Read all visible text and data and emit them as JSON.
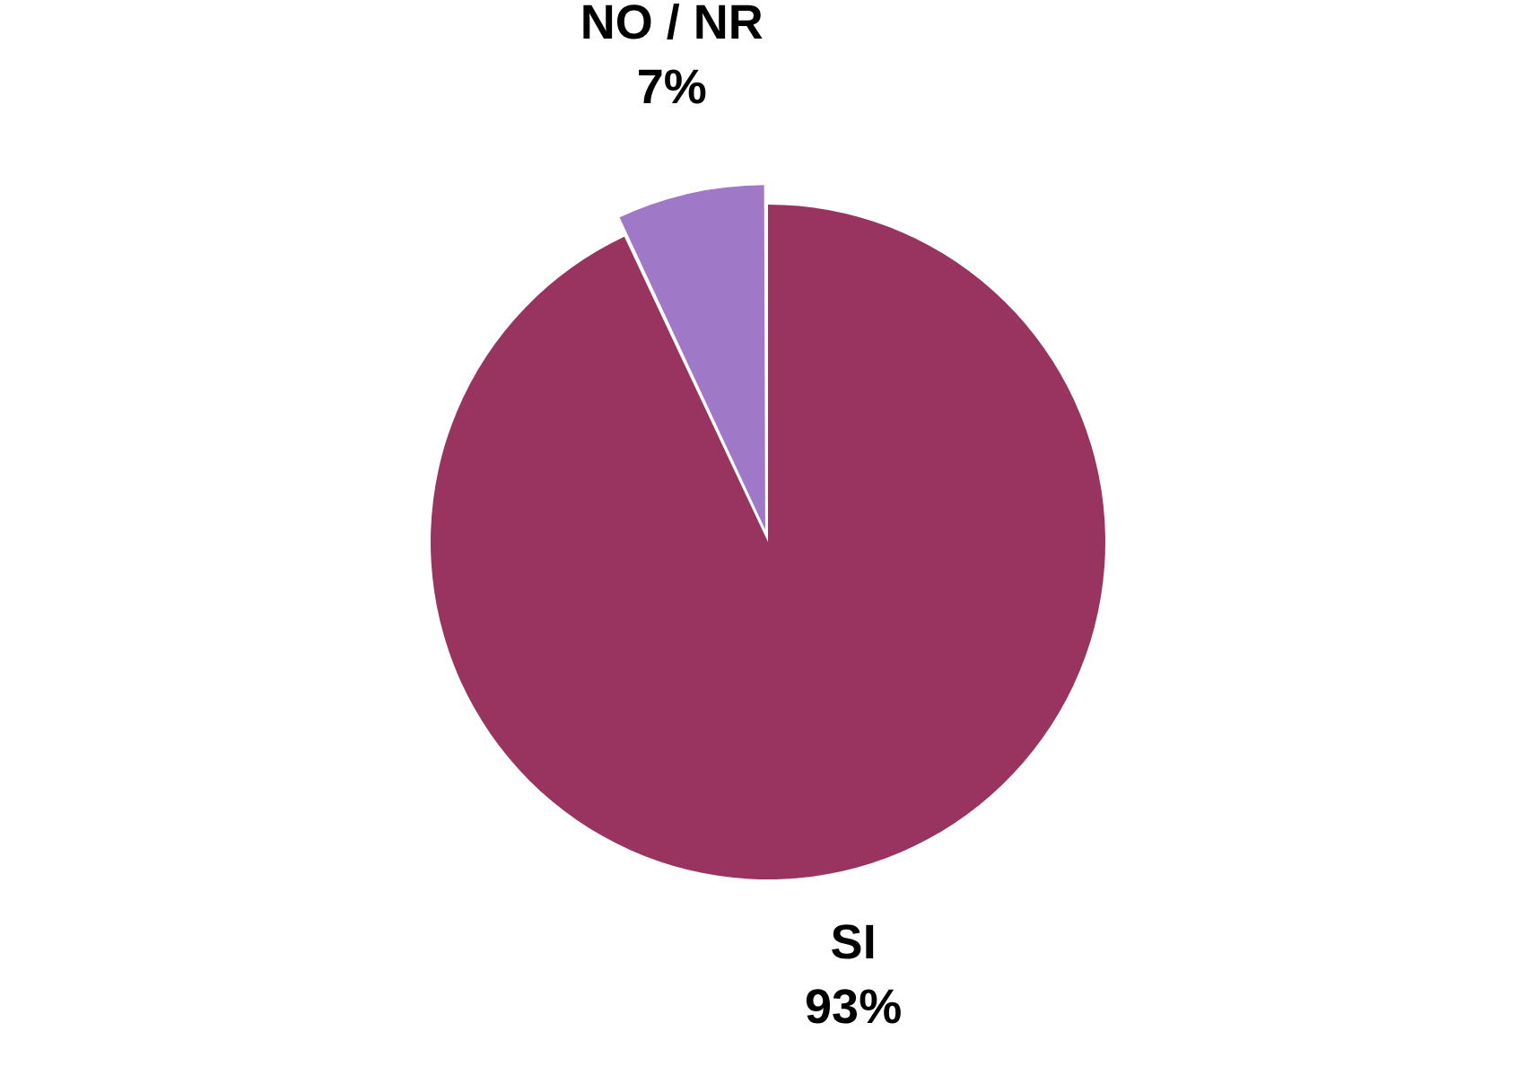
{
  "chart_data": {
    "type": "pie",
    "categories": [
      "SI",
      "NO / NR"
    ],
    "values": [
      93,
      7
    ],
    "colors": [
      "#993360",
      "#a078c8"
    ],
    "value_labels": [
      "93%",
      "7%"
    ]
  }
}
